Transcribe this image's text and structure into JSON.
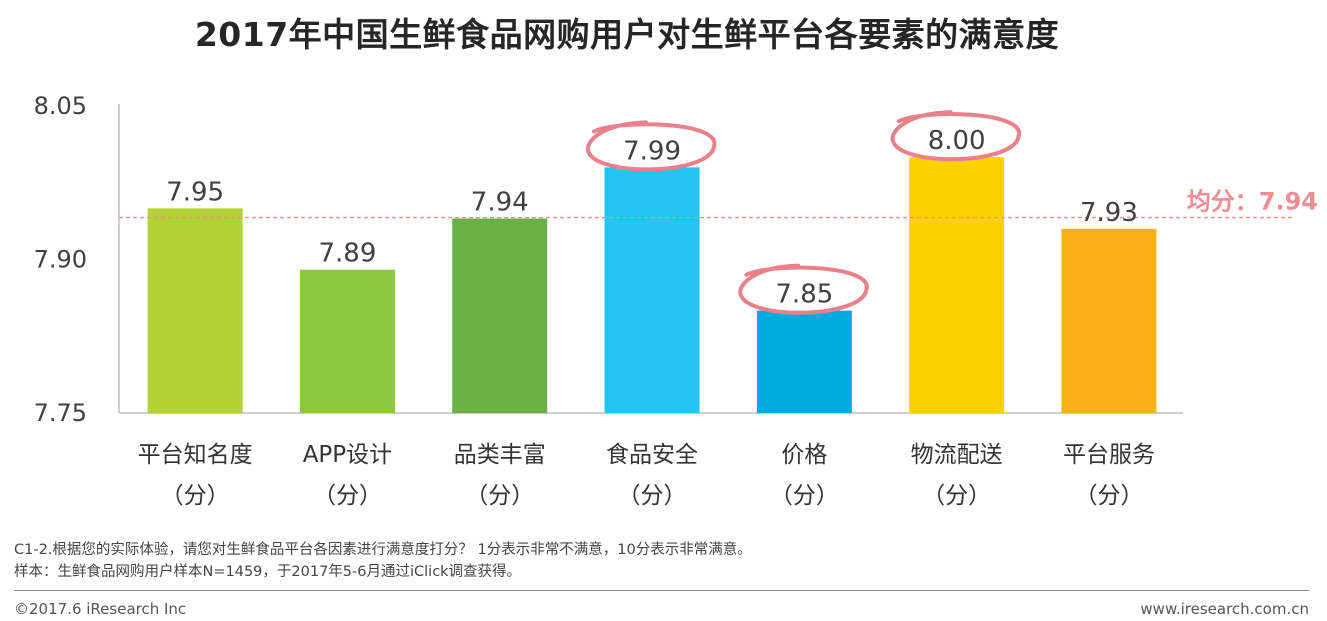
{
  "chart_data": {
    "type": "bar",
    "title": "2017年中国生鲜食品网购用户对生鲜平台各要素的满意度",
    "categories": [
      "平台知名度",
      "APP设计",
      "品类丰富",
      "食品安全",
      "价格",
      "物流配送",
      "平台服务"
    ],
    "category_unit": "（分）",
    "values": [
      7.95,
      7.89,
      7.94,
      7.99,
      7.85,
      8.0,
      7.93
    ],
    "value_labels": [
      "7.95",
      "7.89",
      "7.94",
      "7.99",
      "7.85",
      "8.00",
      "7.93"
    ],
    "bar_colors": [
      "#b2d235",
      "#8dc63f",
      "#69b045",
      "#22c5f0",
      "#00aadf",
      "#fdd000",
      "#f9b21b"
    ],
    "highlighted": [
      "食品安全",
      "价格",
      "物流配送"
    ],
    "highlight_color": "#e9808a",
    "yticks": [
      "7.75",
      "7.90",
      "8.05"
    ],
    "ylim": [
      7.75,
      8.05
    ],
    "average": {
      "value": 7.94,
      "label": "均分：7.94",
      "color": "#ee8e93"
    },
    "grid": false,
    "legend": "none"
  },
  "notes": {
    "question": "C1-2.根据您的实际体验，请您对生鲜食品平台各因素进行满意度打分？ 1分表示非常不满意，10分表示非常满意。",
    "sample": "样本：生鲜食品网购用户样本N=1459，于2017年5-6月通过iClick调查获得。"
  },
  "footer": {
    "copyright": "©2017.6 iResearch Inc",
    "website": "www.iresearch.com.cn"
  }
}
